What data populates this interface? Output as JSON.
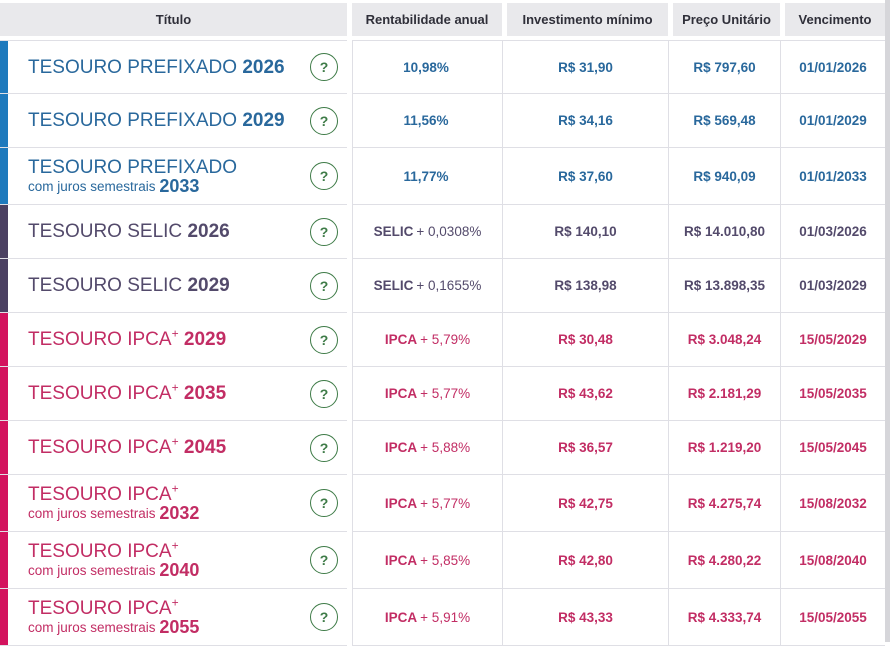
{
  "header": {
    "titulo": "Título",
    "rentabilidade": "Rentabilidade anual",
    "investimento": "Investimento mínimo",
    "preco": "Preço Unitário",
    "vencimento": "Vencimento"
  },
  "help_glyph": "?",
  "colors": {
    "prefixado_bar": "#1e7abd",
    "prefixado_text": "#29689c",
    "selic_bar": "#4b4162",
    "selic_text": "#534a6b",
    "ipca_bar": "#d3135e",
    "ipca_text": "#c22d64",
    "help_green": "#3e7b47",
    "header_bg": "#e9e9ec",
    "header_text": "#2f2f39",
    "border": "#dfdfe5",
    "scrollbar": "#d6d6da"
  },
  "rows": [
    {
      "type": "prefixado",
      "name": "TESOURO PREFIXADO",
      "sup": "",
      "year1": "2026",
      "line2": "",
      "year2": "",
      "rate_bold": "10,98%",
      "rate_rest": "",
      "min": "R$ 31,90",
      "price": "R$ 797,60",
      "date": "01/01/2026"
    },
    {
      "type": "prefixado",
      "name": "TESOURO PREFIXADO",
      "sup": "",
      "year1": "2029",
      "line2": "",
      "year2": "",
      "rate_bold": "11,56%",
      "rate_rest": "",
      "min": "R$ 34,16",
      "price": "R$ 569,48",
      "date": "01/01/2029"
    },
    {
      "type": "prefixado",
      "name": "TESOURO PREFIXADO",
      "sup": "",
      "year1": "",
      "line2": "com juros semestrais",
      "year2": "2033",
      "rate_bold": "11,77%",
      "rate_rest": "",
      "min": "R$ 37,60",
      "price": "R$ 940,09",
      "date": "01/01/2033"
    },
    {
      "type": "selic",
      "name": "TESOURO SELIC",
      "sup": "",
      "year1": "2026",
      "line2": "",
      "year2": "",
      "rate_bold": "SELIC",
      "rate_rest": "+ 0,0308%",
      "min": "R$ 140,10",
      "price": "R$ 14.010,80",
      "date": "01/03/2026"
    },
    {
      "type": "selic",
      "name": "TESOURO SELIC",
      "sup": "",
      "year1": "2029",
      "line2": "",
      "year2": "",
      "rate_bold": "SELIC",
      "rate_rest": "+ 0,1655%",
      "min": "R$ 138,98",
      "price": "R$ 13.898,35",
      "date": "01/03/2029"
    },
    {
      "type": "ipca",
      "name": "TESOURO IPCA",
      "sup": "+",
      "year1": "2029",
      "line2": "",
      "year2": "",
      "rate_bold": "IPCA",
      "rate_rest": "+ 5,79%",
      "min": "R$ 30,48",
      "price": "R$ 3.048,24",
      "date": "15/05/2029"
    },
    {
      "type": "ipca",
      "name": "TESOURO IPCA",
      "sup": "+",
      "year1": "2035",
      "line2": "",
      "year2": "",
      "rate_bold": "IPCA",
      "rate_rest": "+ 5,77%",
      "min": "R$ 43,62",
      "price": "R$ 2.181,29",
      "date": "15/05/2035"
    },
    {
      "type": "ipca",
      "name": "TESOURO IPCA",
      "sup": "+",
      "year1": "2045",
      "line2": "",
      "year2": "",
      "rate_bold": "IPCA",
      "rate_rest": "+ 5,88%",
      "min": "R$ 36,57",
      "price": "R$ 1.219,20",
      "date": "15/05/2045"
    },
    {
      "type": "ipca",
      "name": "TESOURO IPCA",
      "sup": "+",
      "year1": "",
      "line2": "com juros semestrais",
      "year2": "2032",
      "rate_bold": "IPCA",
      "rate_rest": "+ 5,77%",
      "min": "R$ 42,75",
      "price": "R$ 4.275,74",
      "date": "15/08/2032"
    },
    {
      "type": "ipca",
      "name": "TESOURO IPCA",
      "sup": "+",
      "year1": "",
      "line2": "com juros semestrais",
      "year2": "2040",
      "rate_bold": "IPCA",
      "rate_rest": "+ 5,85%",
      "min": "R$ 42,80",
      "price": "R$ 4.280,22",
      "date": "15/08/2040"
    },
    {
      "type": "ipca",
      "name": "TESOURO IPCA",
      "sup": "+",
      "year1": "",
      "line2": "com juros semestrais",
      "year2": "2055",
      "rate_bold": "IPCA",
      "rate_rest": "+ 5,91%",
      "min": "R$ 43,33",
      "price": "R$ 4.333,74",
      "date": "15/05/2055"
    }
  ]
}
